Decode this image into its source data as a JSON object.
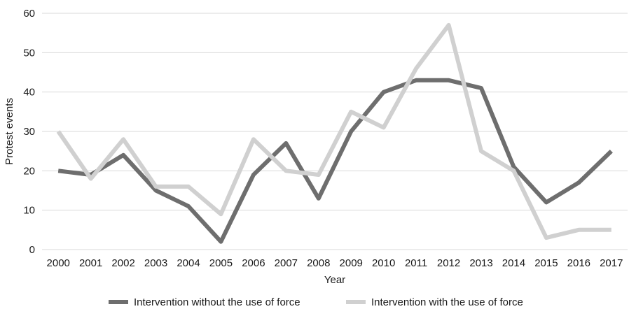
{
  "chart_data": {
    "type": "line",
    "xlabel": "Year",
    "ylabel": "Protest events",
    "ylim": [
      0,
      60
    ],
    "yticks": [
      0,
      10,
      20,
      30,
      40,
      50,
      60
    ],
    "grid": "horizontal",
    "legend_position": "bottom",
    "categories": [
      "2000",
      "2001",
      "2002",
      "2003",
      "2004",
      "2005",
      "2006",
      "2007",
      "2008",
      "2009",
      "2010",
      "2011",
      "2012",
      "2013",
      "2014",
      "2015",
      "2016",
      "2017"
    ],
    "series": [
      {
        "name": "Intervention without the use of force",
        "color": "#6e6e6e",
        "values": [
          20,
          19,
          24,
          15,
          11,
          2,
          19,
          27,
          13,
          30,
          40,
          43,
          43,
          41,
          21,
          12,
          17,
          25
        ]
      },
      {
        "name": "Intervention with the use of force",
        "color": "#d0d0d0",
        "values": [
          30,
          18,
          28,
          16,
          16,
          9,
          28,
          20,
          19,
          35,
          31,
          46,
          57,
          25,
          20,
          3,
          5,
          5
        ]
      }
    ]
  }
}
